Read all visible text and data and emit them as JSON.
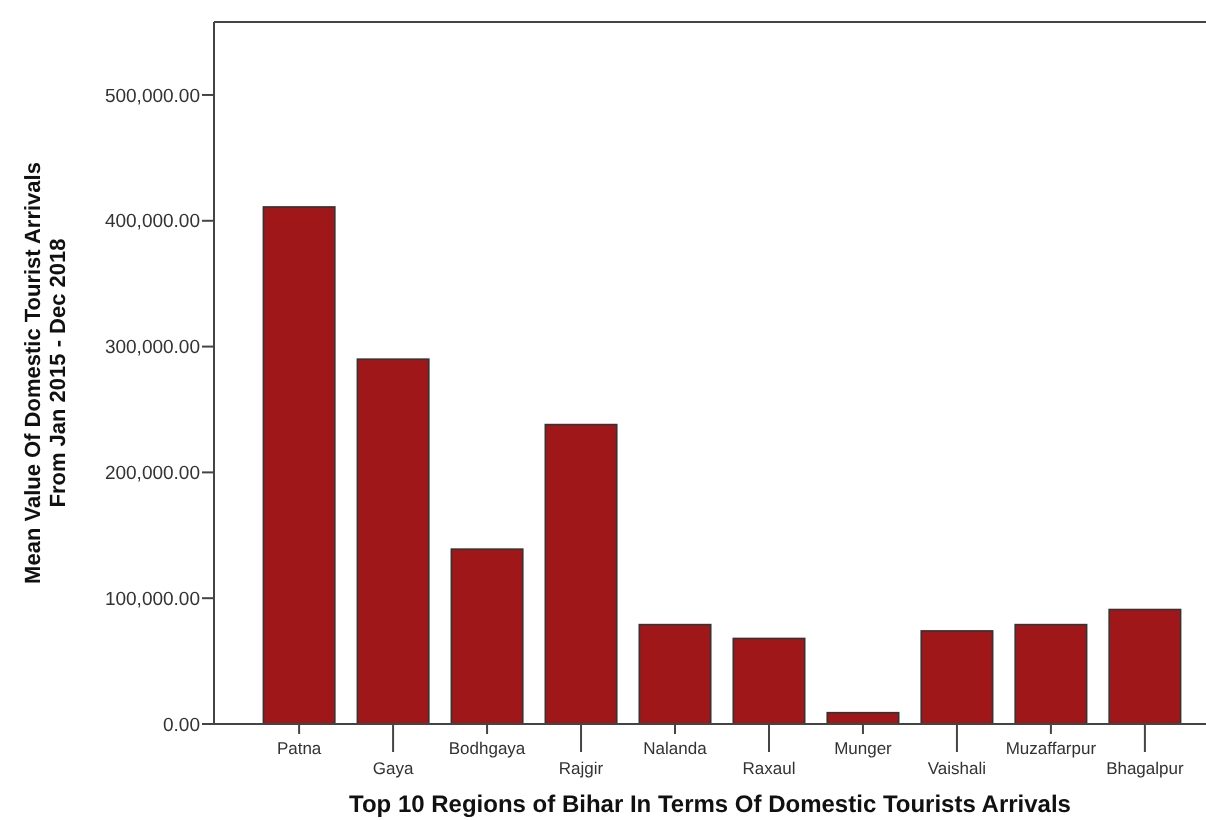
{
  "chart_data": {
    "type": "bar",
    "xlabel": "Top 10 Regions of Bihar In Terms Of Domestic Tourists Arrivals",
    "ylabel": "Mean Value Of  Domestic Tourist Arrivals\nFrom Jan 2015 - Dec 2018",
    "categories": [
      "Patna",
      "Gaya",
      "Bodhgaya",
      "Rajgir",
      "Nalanda",
      "Raxaul",
      "Munger",
      "Vaishali",
      "Muzaffarpur",
      "Bhagalpur"
    ],
    "values": [
      411000,
      290000,
      139000,
      238000,
      79000,
      68000,
      9000,
      74000,
      79000,
      91000
    ],
    "color": "#a01719",
    "ylim": [
      0,
      558000
    ],
    "yticks": [
      {
        "value": 0,
        "label": "0.00"
      },
      {
        "value": 100000,
        "label": "100,000.00"
      },
      {
        "value": 200000,
        "label": "200,000.00"
      },
      {
        "value": 300000,
        "label": "300,000.00"
      },
      {
        "value": 400000,
        "label": "400,000.00"
      },
      {
        "value": 500000,
        "label": "500,000.00"
      }
    ],
    "grid": false
  }
}
